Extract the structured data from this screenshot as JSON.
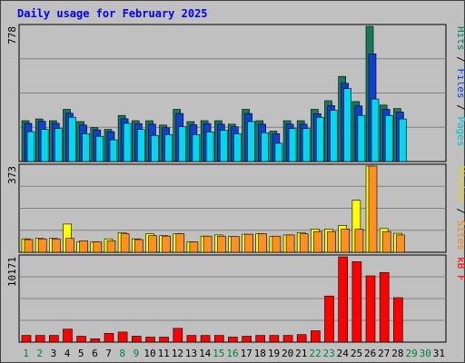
{
  "chart_data": {
    "type": "bar",
    "title": "Daily usage for February 2025",
    "categories": [
      "1",
      "2",
      "3",
      "4",
      "5",
      "6",
      "7",
      "8",
      "9",
      "10",
      "11",
      "12",
      "13",
      "14",
      "15",
      "16",
      "17",
      "18",
      "19",
      "20",
      "21",
      "22",
      "23",
      "24",
      "25",
      "26",
      "27",
      "28",
      "29",
      "30",
      "31"
    ],
    "category_colors": [
      "#008040",
      "#008040",
      "#000000",
      "#000000",
      "#000000",
      "#000000",
      "#000000",
      "#008040",
      "#008040",
      "#000000",
      "#000000",
      "#000000",
      "#000000",
      "#000000",
      "#008040",
      "#008040",
      "#000000",
      "#000000",
      "#000000",
      "#000000",
      "#000000",
      "#008040",
      "#008040",
      "#000000",
      "#000000",
      "#000000",
      "#000000",
      "#000000",
      "#008040",
      "#008040",
      "#000000"
    ],
    "panels": [
      {
        "ymax_label": "778",
        "ymax": 778,
        "legend": [
          {
            "text": "Pages",
            "color": "#00c0d0"
          },
          {
            "text": " / ",
            "color": "#000000"
          },
          {
            "text": "Files",
            "color": "#0040e0"
          },
          {
            "text": " / ",
            "color": "#000000"
          },
          {
            "text": "Hits",
            "color": "#008060"
          }
        ],
        "series": [
          {
            "name": "Hits",
            "color": "#18785a",
            "values": [
              235,
              245,
              235,
              300,
              230,
              195,
              185,
              265,
              235,
              235,
              210,
              300,
              230,
              235,
              235,
              215,
              300,
              235,
              175,
              235,
              235,
              300,
              350,
              490,
              345,
              778,
              325,
              305,
              0,
              0,
              0
            ]
          },
          {
            "name": "Files",
            "color": "#1040d0",
            "values": [
              220,
              232,
              220,
              278,
              210,
              182,
              172,
              246,
              218,
              215,
              194,
              276,
              212,
              218,
              215,
              200,
              276,
              215,
              160,
              215,
              215,
              275,
              322,
              450,
              320,
              620,
              300,
              285,
              0,
              0,
              0
            ]
          },
          {
            "name": "Pages",
            "color": "#00d8f0",
            "values": [
              172,
              185,
              190,
              255,
              160,
              145,
              125,
              220,
              185,
              150,
              155,
              200,
              155,
              170,
              180,
              160,
              230,
              165,
              105,
              190,
              190,
              255,
              295,
              420,
              265,
              360,
              265,
              245,
              0,
              0,
              0
            ]
          }
        ]
      },
      {
        "ymax_label": "373",
        "ymax": 373,
        "legend": [
          {
            "text": "Sites",
            "color": "#ff8000"
          },
          {
            "text": " / ",
            "color": "#000000"
          },
          {
            "text": "Visits",
            "color": "#e8d800"
          }
        ],
        "series": [
          {
            "name": "Visits",
            "color": "#ffff00",
            "values": [
              58,
              60,
              60,
              122,
              45,
              45,
              58,
              85,
              58,
              80,
              72,
              80,
              45,
              70,
              75,
              68,
              78,
              80,
              68,
              75,
              85,
              100,
              100,
              116,
              225,
              373,
              103,
              82,
              0,
              0,
              0
            ]
          },
          {
            "name": "Sites",
            "color": "#ff9020",
            "values": [
              55,
              58,
              58,
              60,
              50,
              45,
              50,
              80,
              55,
              72,
              70,
              80,
              45,
              70,
              70,
              68,
              78,
              80,
              70,
              75,
              80,
              90,
              90,
              100,
              100,
              373,
              90,
              75,
              0,
              0,
              0
            ]
          }
        ]
      },
      {
        "ymax_label": "10171",
        "ymax": 10171,
        "legend": [
          {
            "text": "kB F",
            "color": "#ff0000"
          }
        ],
        "series": [
          {
            "name": "kB F",
            "color": "#ff0000",
            "values": [
              800,
              800,
              800,
              1550,
              700,
              400,
              1050,
              1200,
              700,
              600,
              600,
              1650,
              800,
              800,
              800,
              600,
              700,
              800,
              800,
              800,
              900,
              1350,
              5500,
              10171,
              9600,
              7900,
              8300,
              5300,
              0,
              0,
              0
            ]
          }
        ]
      }
    ]
  }
}
